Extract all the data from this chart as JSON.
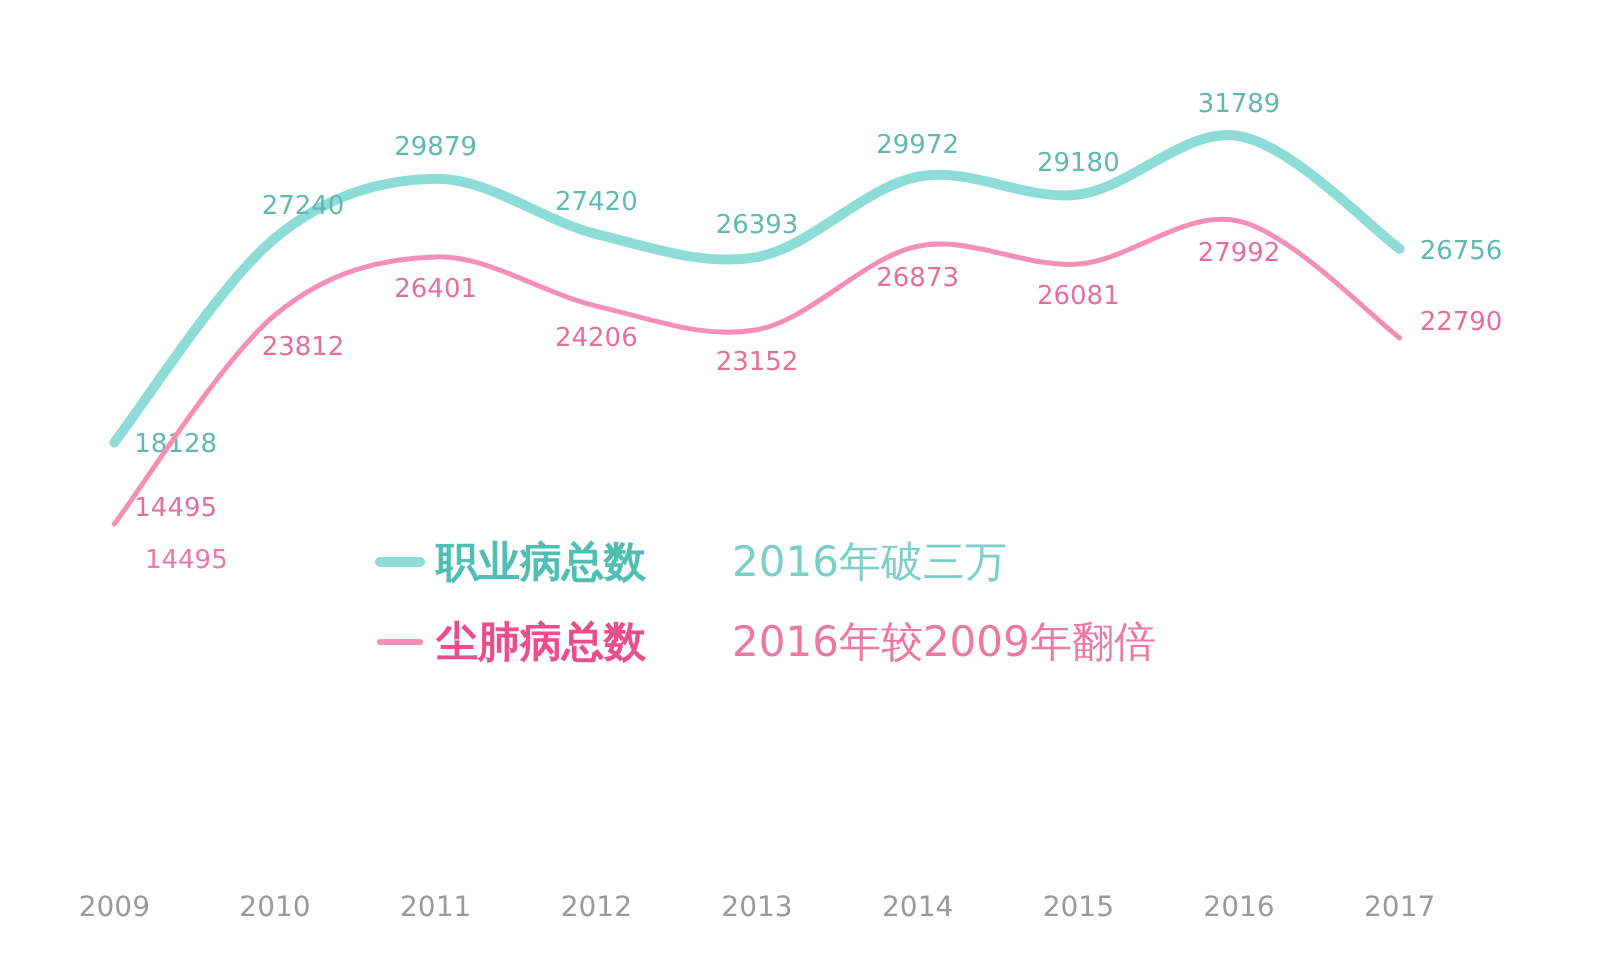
{
  "chart_data": {
    "type": "line",
    "categories": [
      "2009",
      "2010",
      "2011",
      "2012",
      "2013",
      "2014",
      "2015",
      "2016",
      "2017"
    ],
    "series": [
      {
        "name": "职业病总数",
        "color": "#8ddcd6",
        "values": [
          18128,
          27240,
          29879,
          27420,
          26393,
          29972,
          29180,
          31789,
          26756
        ]
      },
      {
        "name": "尘肺病总数",
        "color": "#f48fb6",
        "values": [
          14495,
          23812,
          26401,
          24206,
          23152,
          26873,
          26081,
          27992,
          22790
        ]
      }
    ],
    "data_labels": true,
    "legend": "bottom",
    "grid": false,
    "marker": "none",
    "line_style": "solid",
    "annotations": [
      "2016年破三万",
      "2016年较2009年翻倍",
      {
        "text": "14495",
        "x": "2009",
        "y": 14495
      }
    ]
  }
}
